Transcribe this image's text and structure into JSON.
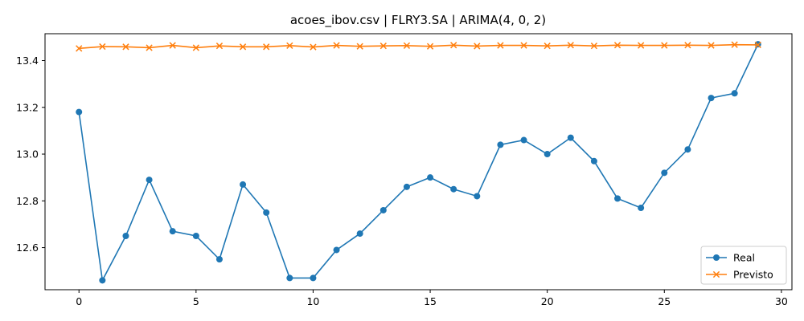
{
  "chart_data": {
    "type": "line",
    "title": "acoes_ibov.csv | FLRY3.SA | ARIMA(4, 0, 2)",
    "xlabel": "",
    "ylabel": "",
    "xlim": [
      -1.45,
      30.45
    ],
    "ylim": [
      12.42,
      13.515
    ],
    "xticks": [
      0,
      5,
      10,
      15,
      20,
      25,
      30
    ],
    "yticks": [
      12.6,
      12.8,
      13.0,
      13.2,
      13.4
    ],
    "xtick_labels": [
      "0",
      "5",
      "10",
      "15",
      "20",
      "25",
      "30"
    ],
    "ytick_labels": [
      "12.6",
      "12.8",
      "13.0",
      "13.2",
      "13.4"
    ],
    "grid": false,
    "legend_position": "lower-right",
    "x": [
      0,
      1,
      2,
      3,
      4,
      5,
      6,
      7,
      8,
      9,
      10,
      11,
      12,
      13,
      14,
      15,
      16,
      17,
      18,
      19,
      20,
      21,
      22,
      23,
      24,
      25,
      26,
      27,
      28,
      29
    ],
    "series": [
      {
        "name": "Real",
        "color": "#1f77b4",
        "marker": "circle",
        "values": [
          13.18,
          12.46,
          12.65,
          12.89,
          12.67,
          12.65,
          12.55,
          12.87,
          12.75,
          12.47,
          12.47,
          12.59,
          12.66,
          12.76,
          12.86,
          12.9,
          12.85,
          12.82,
          13.04,
          13.06,
          13.0,
          13.07,
          12.97,
          12.81,
          12.77,
          12.92,
          13.02,
          13.24,
          13.26,
          13.47
        ]
      },
      {
        "name": "Previsto",
        "color": "#ff7f0e",
        "marker": "x",
        "values": [
          13.452,
          13.46,
          13.459,
          13.455,
          13.465,
          13.455,
          13.463,
          13.459,
          13.459,
          13.464,
          13.458,
          13.465,
          13.461,
          13.463,
          13.464,
          13.461,
          13.466,
          13.462,
          13.465,
          13.465,
          13.463,
          13.466,
          13.463,
          13.466,
          13.465,
          13.465,
          13.466,
          13.465,
          13.468,
          13.467
        ]
      }
    ]
  }
}
